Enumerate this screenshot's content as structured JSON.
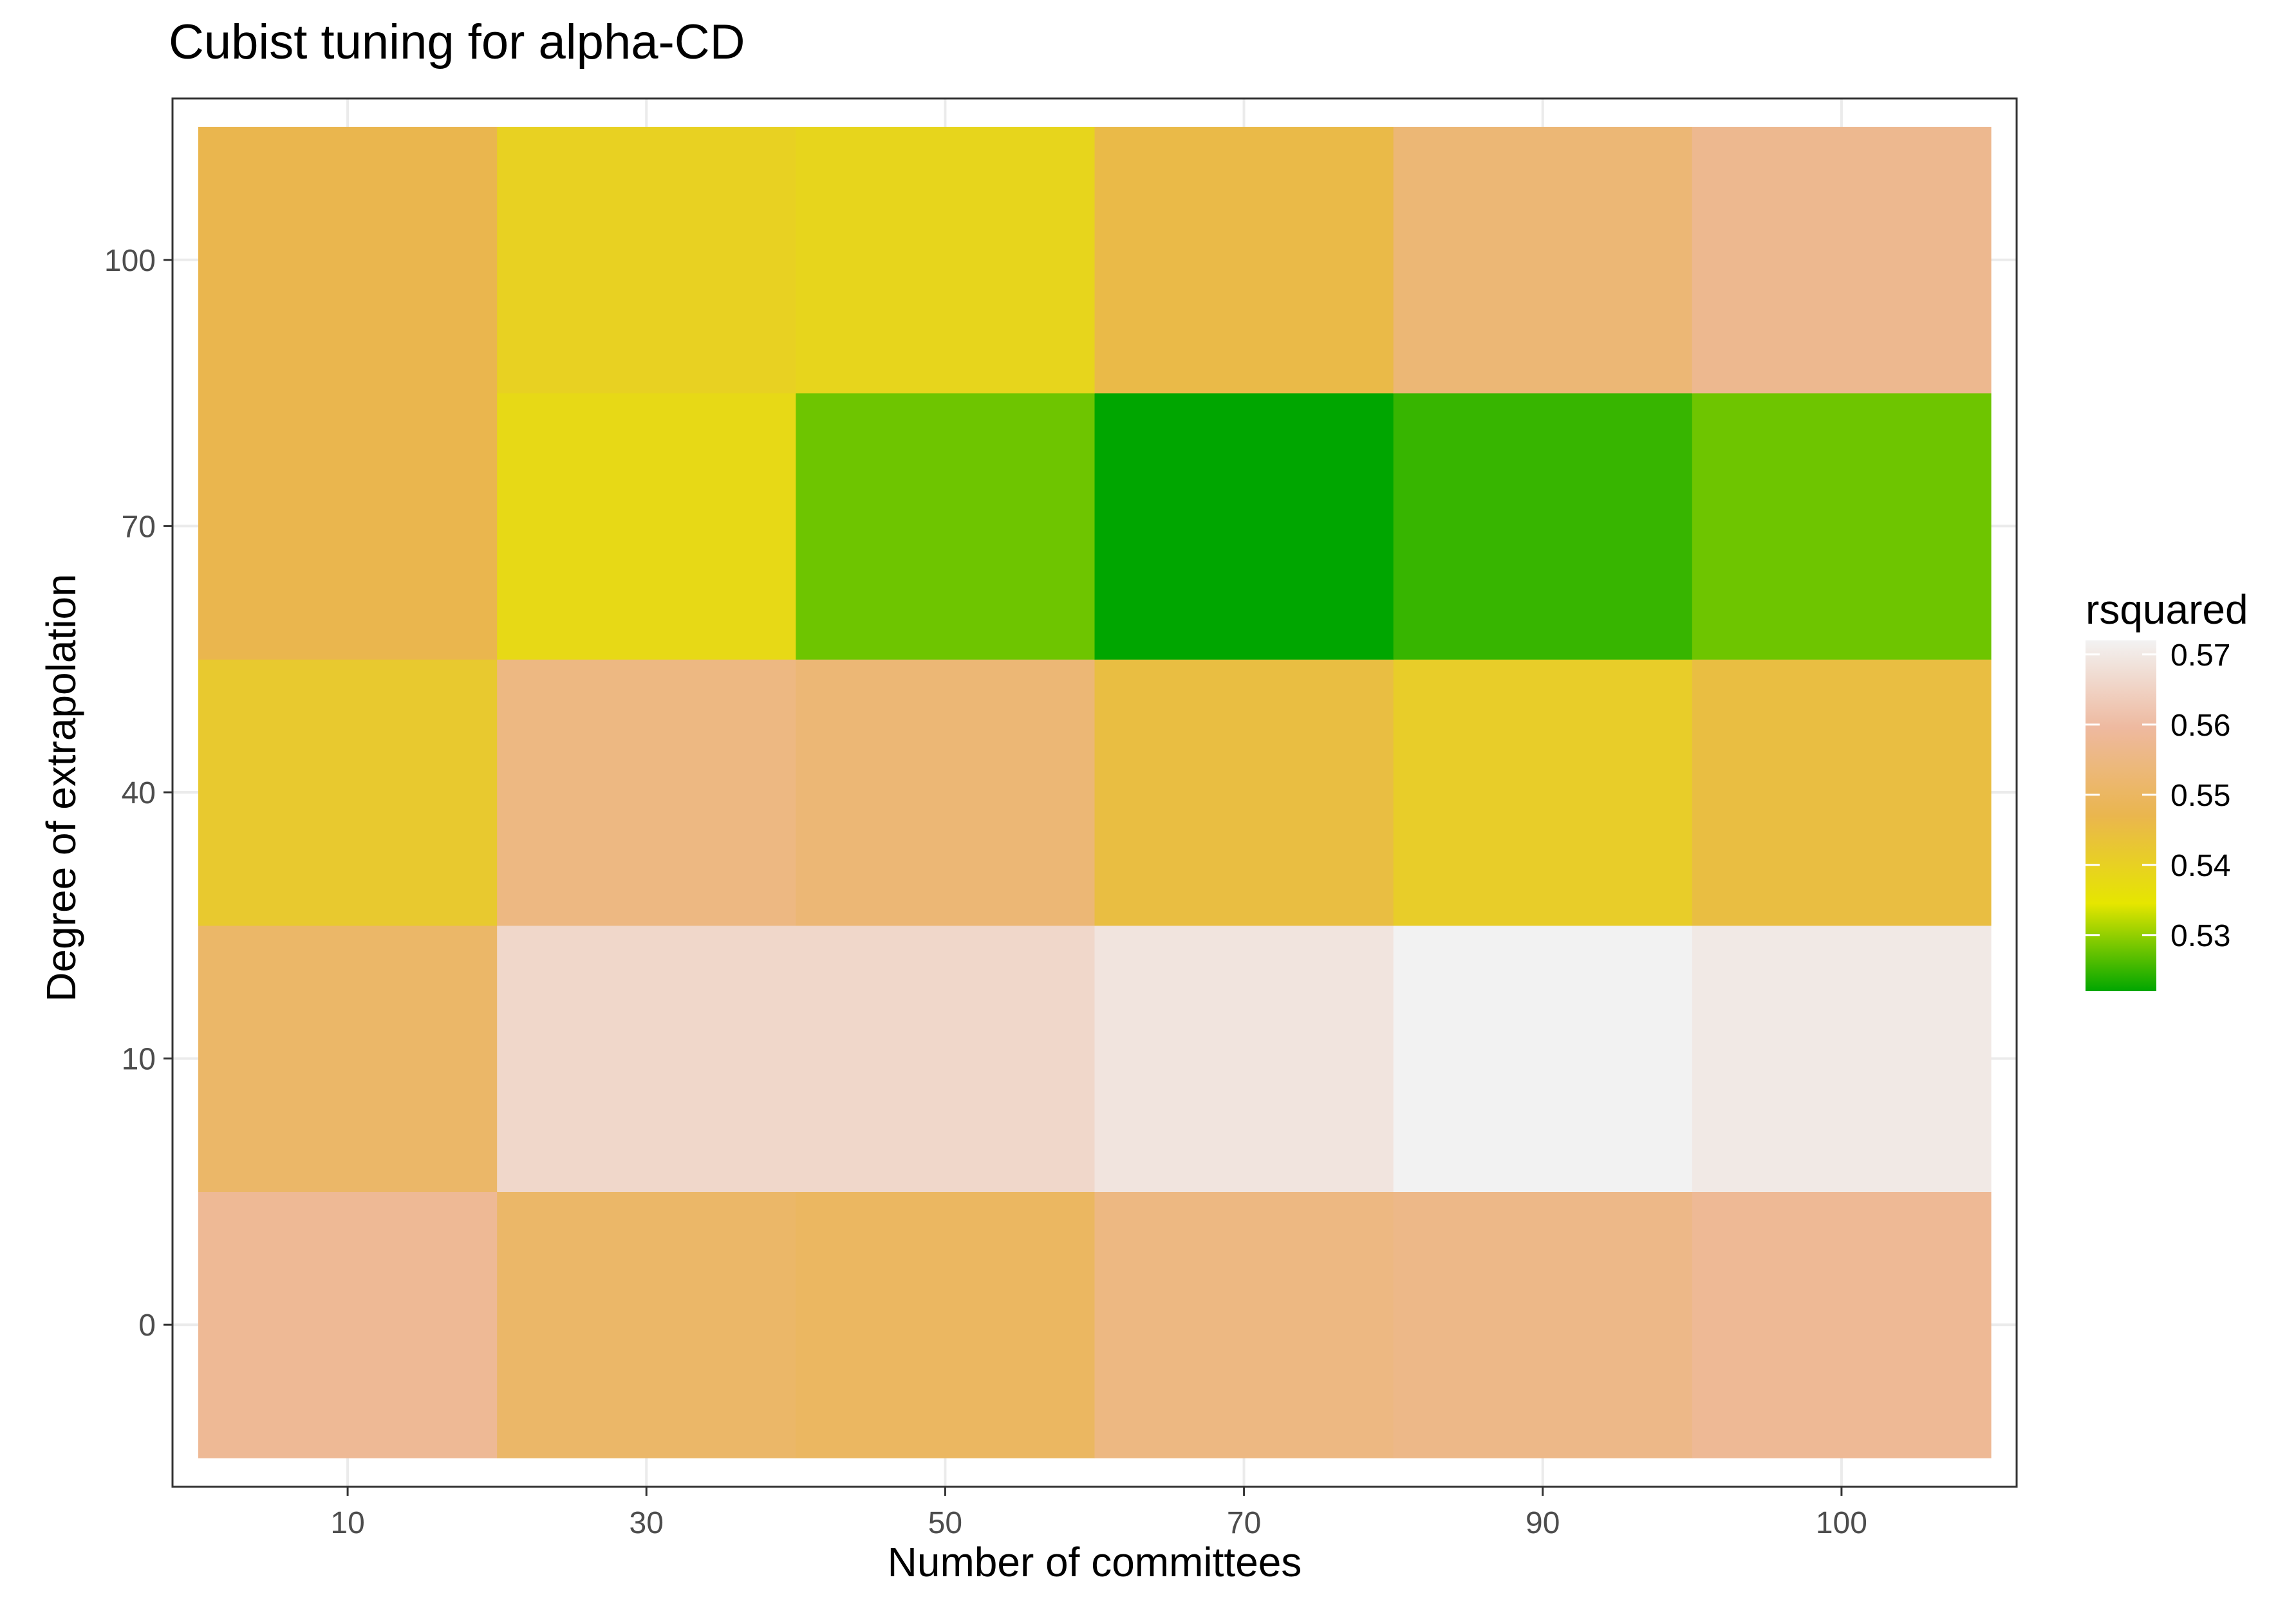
{
  "chart_data": {
    "type": "heatmap",
    "title": "Cubist tuning for alpha-CD",
    "xlabel": "Number of committees",
    "ylabel": "Degree of extrapolation",
    "x_categories": [
      "10",
      "30",
      "50",
      "70",
      "90",
      "100"
    ],
    "y_categories": [
      "0",
      "10",
      "40",
      "70",
      "100"
    ],
    "values": [
      [
        0.558,
        0.551,
        0.55,
        0.555,
        0.556,
        0.558
      ],
      [
        0.551,
        0.566,
        0.566,
        0.569,
        0.572,
        0.57
      ],
      [
        0.542,
        0.555,
        0.553,
        0.545,
        0.541,
        0.545
      ],
      [
        0.547,
        0.538,
        0.528,
        0.522,
        0.525,
        0.528
      ],
      [
        0.547,
        0.54,
        0.539,
        0.546,
        0.553,
        0.557
      ]
    ],
    "legend": {
      "title": "rsquared",
      "placement": "right",
      "breaks": [
        "0.57",
        "0.56",
        "0.55",
        "0.54",
        "0.53"
      ],
      "break_values": [
        0.57,
        0.56,
        0.55,
        0.54,
        0.53
      ],
      "range": [
        0.522,
        0.572
      ],
      "colors": [
        "#00a600",
        "#e6e600",
        "#eab64e",
        "#eeb99f",
        "#f2f2f2"
      ]
    },
    "grid": true
  }
}
